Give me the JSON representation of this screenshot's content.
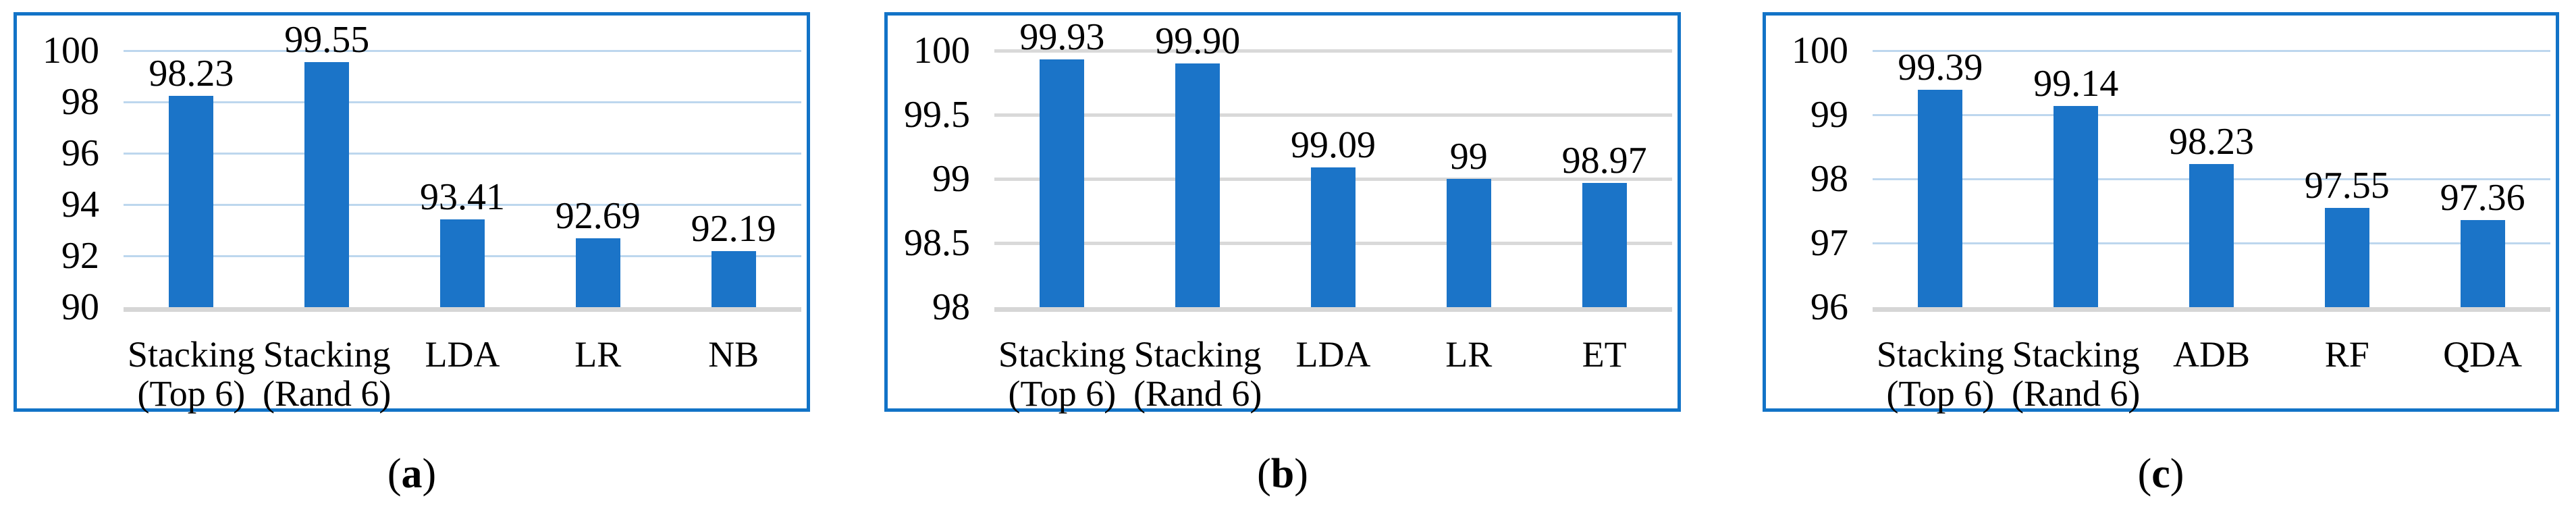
{
  "figure": {
    "background": "#ffffff",
    "style": {
      "bar_color": "#1B74C8",
      "panel_border_color": "#1273C7",
      "gridline_blue": "#BDD7EE",
      "gridline_gray": "#D9D9D9",
      "baseline_color": "#D6D6D6",
      "text_color": "#000000"
    }
  },
  "chart_data": [
    {
      "type": "bar",
      "panel": "a",
      "caption_open": "(",
      "caption_letter": "a",
      "caption_close": ")",
      "title": "",
      "xlabel": "",
      "ylabel": "",
      "legend": false,
      "grid": true,
      "categories": [
        "Stacking (Top 6)",
        "Stacking (Rand 6)",
        "LDA",
        "LR",
        "NB"
      ],
      "category_lines": [
        [
          "Stacking",
          "(Top 6)"
        ],
        [
          "Stacking",
          "(Rand 6)"
        ],
        [
          "LDA"
        ],
        [
          "LR"
        ],
        [
          "NB"
        ]
      ],
      "values": [
        98.23,
        99.55,
        93.41,
        92.69,
        92.19
      ],
      "value_labels": [
        "98.23",
        "99.55",
        "93.41",
        "92.69",
        "92.19"
      ],
      "ylim": [
        90,
        100
      ],
      "ytick_step": 2,
      "yticks": [
        "100",
        "98",
        "96",
        "94",
        "92",
        "90"
      ],
      "gridline_color": "#BDD7EE",
      "gridline_thickness": 3
    },
    {
      "type": "bar",
      "panel": "b",
      "caption_open": "(",
      "caption_letter": "b",
      "caption_close": ")",
      "title": "",
      "xlabel": "",
      "ylabel": "",
      "legend": false,
      "grid": true,
      "categories": [
        "Stacking (Top 6)",
        "Stacking (Rand 6)",
        "LDA",
        "LR",
        "ET"
      ],
      "category_lines": [
        [
          "Stacking",
          "(Top 6)"
        ],
        [
          "Stacking",
          "(Rand 6)"
        ],
        [
          "LDA"
        ],
        [
          "LR"
        ],
        [
          "ET"
        ]
      ],
      "values": [
        99.93,
        99.9,
        99.09,
        99,
        98.97
      ],
      "value_labels": [
        "99.93",
        "99.90",
        "99.09",
        "99",
        "98.97"
      ],
      "ylim": [
        98,
        100
      ],
      "ytick_step": 0.5,
      "yticks": [
        "100",
        "99.5",
        "99",
        "98.5",
        "98"
      ],
      "gridline_color": "#D9D9D9",
      "gridline_thickness": 5
    },
    {
      "type": "bar",
      "panel": "c",
      "caption_open": "(",
      "caption_letter": "c",
      "caption_close": ")",
      "title": "",
      "xlabel": "",
      "ylabel": "",
      "legend": false,
      "grid": true,
      "categories": [
        "Stacking (Top 6)",
        "Stacking (Rand 6)",
        "ADB",
        "RF",
        "QDA"
      ],
      "category_lines": [
        [
          "Stacking",
          "(Top 6)"
        ],
        [
          "Stacking",
          "(Rand 6)"
        ],
        [
          "ADB"
        ],
        [
          "RF"
        ],
        [
          "QDA"
        ]
      ],
      "values": [
        99.39,
        99.14,
        98.23,
        97.55,
        97.36
      ],
      "value_labels": [
        "99.39",
        "99.14",
        "98.23",
        "97.55",
        "97.36"
      ],
      "ylim": [
        96,
        100
      ],
      "ytick_step": 1,
      "yticks": [
        "100",
        "99",
        "98",
        "97",
        "96"
      ],
      "gridline_color": "#BDD7EE",
      "gridline_thickness": 3
    }
  ]
}
